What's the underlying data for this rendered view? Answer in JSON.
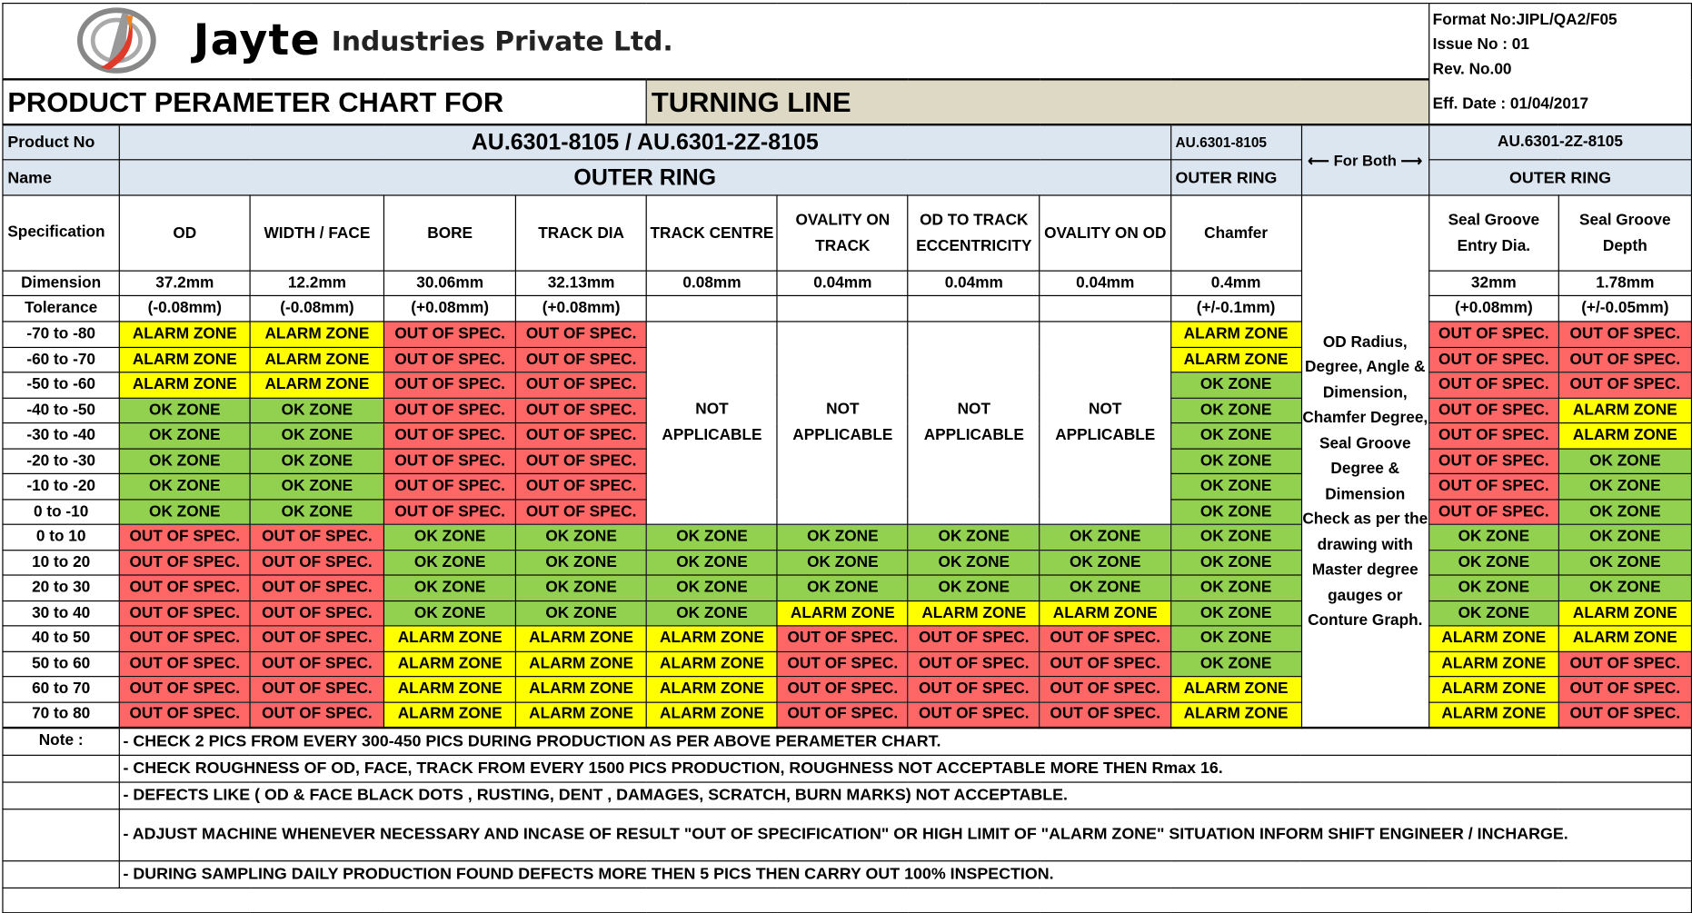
{
  "company": {
    "logo_text": "Jayte",
    "name_rest": "Industries Private Ltd."
  },
  "doc_info": {
    "format_no": "Format No:JIPL/QA2/F05",
    "issue_no": "Issue No : 01",
    "rev_no": "Rev. No.00",
    "eff_date": "Eff. Date : 01/04/2017"
  },
  "title": {
    "label": "PRODUCT PERAMETER CHART FOR",
    "line": "TURNING LINE"
  },
  "product_row": {
    "label": "Product No",
    "both": "AU.6301-8105 / AU.6301-2Z-8105",
    "chamfer_product": "AU.6301-8105",
    "for_both": "⟵ For Both ⟶",
    "seal_product": "AU.6301-2Z-8105"
  },
  "name_row": {
    "label": "Name",
    "both": "OUTER RING",
    "chamfer_name": "OUTER RING",
    "seal_name": "OUTER RING"
  },
  "spec_label": "Specification",
  "columns": [
    "OD",
    "WIDTH / FACE",
    "BORE",
    "TRACK DIA",
    "TRACK CENTRE",
    "OVALITY ON TRACK",
    "OD TO TRACK ECCENTRICITY",
    "OVALITY ON OD",
    "Chamfer",
    "Seal Groove Entry Dia.",
    "Seal Groove Depth"
  ],
  "dimension": {
    "label": "Dimension",
    "values": [
      "37.2mm",
      "12.2mm",
      "30.06mm",
      "32.13mm",
      "0.08mm",
      "0.04mm",
      "0.04mm",
      "0.04mm",
      "0.4mm",
      "32mm",
      "1.78mm"
    ]
  },
  "tolerance": {
    "label": "Tolerance",
    "values": [
      "(-0.08mm)",
      "(-0.08mm)",
      "(+0.08mm)",
      "(+0.08mm)",
      "",
      "",
      "",
      "",
      "(+/-0.1mm)",
      "(+0.08mm)",
      "(+/-0.05mm)"
    ]
  },
  "for_both_note": "OD Radius, Degree, Angle & Dimension, Chamfer Degree, Seal Groove Degree & Dimension Check as per the drawing with Master degree gauges or Conture Graph.",
  "not_applicable": "NOT APPLICABLE",
  "zone_labels": {
    "A": "ALARM ZONE",
    "O": "OUT OF SPEC.",
    "K": "OK ZONE"
  },
  "zone_colors": {
    "A": "#FFFF00",
    "O": "#FF6666",
    "K": "#92D050"
  },
  "rows": [
    {
      "range": "-70 to -80",
      "zones": [
        "A",
        "A",
        "O",
        "O",
        null,
        null,
        null,
        null,
        "A",
        "O",
        "O"
      ]
    },
    {
      "range": "-60 to -70",
      "zones": [
        "A",
        "A",
        "O",
        "O",
        null,
        null,
        null,
        null,
        "A",
        "O",
        "O"
      ]
    },
    {
      "range": "-50 to -60",
      "zones": [
        "A",
        "A",
        "O",
        "O",
        null,
        null,
        null,
        null,
        "K",
        "O",
        "O"
      ]
    },
    {
      "range": "-40 to -50",
      "zones": [
        "K",
        "K",
        "O",
        "O",
        null,
        null,
        null,
        null,
        "K",
        "O",
        "A"
      ]
    },
    {
      "range": "-30 to -40",
      "zones": [
        "K",
        "K",
        "O",
        "O",
        null,
        null,
        null,
        null,
        "K",
        "O",
        "A"
      ]
    },
    {
      "range": "-20 to -30",
      "zones": [
        "K",
        "K",
        "O",
        "O",
        null,
        null,
        null,
        null,
        "K",
        "O",
        "K"
      ]
    },
    {
      "range": "-10 to -20",
      "zones": [
        "K",
        "K",
        "O",
        "O",
        null,
        null,
        null,
        null,
        "K",
        "O",
        "K"
      ]
    },
    {
      "range": "0 to -10",
      "zones": [
        "K",
        "K",
        "O",
        "O",
        null,
        null,
        null,
        null,
        "K",
        "O",
        "K"
      ]
    },
    {
      "range": "0 to 10",
      "zones": [
        "O",
        "O",
        "K",
        "K",
        "K",
        "K",
        "K",
        "K",
        "K",
        "K",
        "K"
      ]
    },
    {
      "range": "10 to 20",
      "zones": [
        "O",
        "O",
        "K",
        "K",
        "K",
        "K",
        "K",
        "K",
        "K",
        "K",
        "K"
      ]
    },
    {
      "range": "20 to 30",
      "zones": [
        "O",
        "O",
        "K",
        "K",
        "K",
        "K",
        "K",
        "K",
        "K",
        "K",
        "K"
      ]
    },
    {
      "range": "30 to 40",
      "zones": [
        "O",
        "O",
        "K",
        "K",
        "K",
        "A",
        "A",
        "A",
        "K",
        "K",
        "A"
      ]
    },
    {
      "range": "40 to 50",
      "zones": [
        "O",
        "O",
        "A",
        "A",
        "A",
        "O",
        "O",
        "O",
        "K",
        "A",
        "A"
      ]
    },
    {
      "range": "50 to 60",
      "zones": [
        "O",
        "O",
        "A",
        "A",
        "A",
        "O",
        "O",
        "O",
        "K",
        "A",
        "O"
      ]
    },
    {
      "range": "60 to 70",
      "zones": [
        "O",
        "O",
        "A",
        "A",
        "A",
        "O",
        "O",
        "O",
        "A",
        "A",
        "O"
      ]
    },
    {
      "range": "70 to 80",
      "zones": [
        "O",
        "O",
        "A",
        "A",
        "A",
        "O",
        "O",
        "O",
        "A",
        "A",
        "O"
      ]
    }
  ],
  "notes": {
    "label": "Note :",
    "items": [
      "- CHECK 2 PICS  FROM EVERY 300-450 PICS DURING PRODUCTION AS PER ABOVE PERAMETER CHART.",
      "- CHECK ROUGHNESS OF OD, FACE, TRACK FROM EVERY 1500 PICS PRODUCTION, ROUGHNESS NOT ACCEPTABLE MORE THEN Rmax 16.",
      "- DEFECTS LIKE ( OD & FACE BLACK DOTS , RUSTING, DENT , DAMAGES, SCRATCH, BURN MARKS) NOT ACCEPTABLE.",
      "- ADJUST MACHINE WHENEVER NECESSARY AND INCASE OF RESULT \"OUT OF SPECIFICATION\" OR HIGH LIMIT OF \"ALARM ZONE\" SITUATION INFORM SHIFT ENGINEER / INCHARGE.",
      "- DURING SAMPLING DAILY PRODUCTION FOUND DEFECTS MORE THEN 5 PICS THEN CARRY OUT 100% INSPECTION."
    ]
  }
}
